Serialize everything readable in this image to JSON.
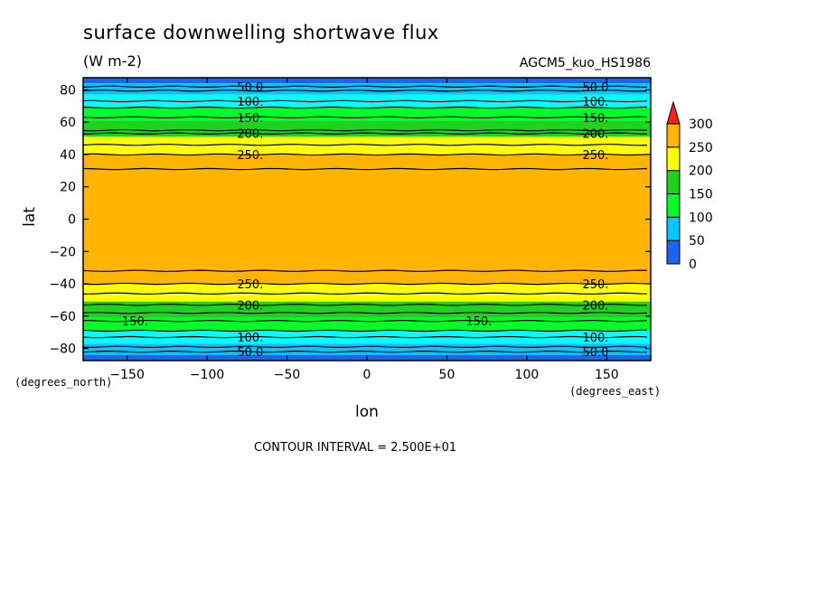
{
  "header": {
    "title": "surface downwelling shortwave flux",
    "units": "(W m-2)",
    "source": "AGCM5_kuo_HS1986"
  },
  "footer": {
    "contour_interval": "CONTOUR INTERVAL = 2.500E+01"
  },
  "chart_data": {
    "type": "heatmap",
    "xlabel": "lon",
    "ylabel": "lat",
    "x_unit_label": "(degrees_east)",
    "y_unit_label": "(degrees_north)",
    "xlim": [
      -177.5,
      177.5
    ],
    "ylim": [
      -87.5,
      87.5
    ],
    "x_ticks": [
      -150,
      -100,
      -50,
      0,
      50,
      100,
      150
    ],
    "y_ticks": [
      -80,
      -60,
      -40,
      -20,
      0,
      20,
      40,
      60,
      80
    ],
    "contour_interval": 25,
    "colorbar": {
      "levels": [
        0,
        50,
        100,
        150,
        200,
        250,
        300
      ],
      "colors": [
        "#1e64f0",
        "#00c8ff",
        "#00ff2a",
        "#1ed21e",
        "#ffff00",
        "#ffb400",
        "#ff1e1e"
      ],
      "overflow_color": "#ff1e1e"
    },
    "bands": [
      {
        "lat_min": 84,
        "lat_max": 87.5,
        "color": "#1e64f0"
      },
      {
        "lat_min": 77,
        "lat_max": 84,
        "color": "#00c8ff"
      },
      {
        "lat_min": 69,
        "lat_max": 77,
        "color": "#00ffff"
      },
      {
        "lat_min": 61,
        "lat_max": 69,
        "color": "#00ff2a"
      },
      {
        "lat_min": 51,
        "lat_max": 61,
        "color": "#1ed21e"
      },
      {
        "lat_min": 40,
        "lat_max": 51,
        "color": "#ffff00"
      },
      {
        "lat_min": -40,
        "lat_max": 40,
        "color": "#ffb400"
      },
      {
        "lat_min": -51,
        "lat_max": -40,
        "color": "#ffff00"
      },
      {
        "lat_min": -61,
        "lat_max": -51,
        "color": "#1ed21e"
      },
      {
        "lat_min": -69,
        "lat_max": -61,
        "color": "#00ff2a"
      },
      {
        "lat_min": -77,
        "lat_max": -69,
        "color": "#00ffff"
      },
      {
        "lat_min": -84,
        "lat_max": -77,
        "color": "#00c8ff"
      },
      {
        "lat_min": -87.5,
        "lat_max": -84,
        "color": "#1e64f0"
      }
    ],
    "contours": [
      {
        "value": 50,
        "lat": 82,
        "labels": [
          {
            "text": "50.0",
            "lon": -73
          },
          {
            "text": "50.0",
            "lon": 143
          }
        ]
      },
      {
        "value": 75,
        "lat": 79.5,
        "labels": []
      },
      {
        "value": 100,
        "lat": 73,
        "labels": [
          {
            "text": "100.",
            "lon": -73
          },
          {
            "text": "100.",
            "lon": 143
          }
        ]
      },
      {
        "value": 125,
        "lat": 69,
        "labels": []
      },
      {
        "value": 150,
        "lat": 63,
        "labels": [
          {
            "text": "150.",
            "lon": -73
          },
          {
            "text": "150.",
            "lon": 143
          }
        ]
      },
      {
        "value": 175,
        "lat": 55,
        "labels": []
      },
      {
        "value": 200,
        "lat": 53,
        "labels": [
          {
            "text": "200.",
            "lon": -73
          },
          {
            "text": "200.",
            "lon": 143
          }
        ]
      },
      {
        "value": 225,
        "lat": 46,
        "labels": []
      },
      {
        "value": 250,
        "lat": 40,
        "labels": [
          {
            "text": "250.",
            "lon": -73
          },
          {
            "text": "250.",
            "lon": 143
          }
        ]
      },
      {
        "value": 275,
        "lat": 31,
        "labels": []
      },
      {
        "value": 275,
        "lat": -32,
        "labels": []
      },
      {
        "value": 250,
        "lat": -40,
        "labels": [
          {
            "text": "250.",
            "lon": -73
          },
          {
            "text": "250.",
            "lon": 143
          }
        ]
      },
      {
        "value": 225,
        "lat": -46,
        "labels": []
      },
      {
        "value": 200,
        "lat": -53,
        "labels": [
          {
            "text": "200.",
            "lon": -73
          },
          {
            "text": "200.",
            "lon": 143
          }
        ]
      },
      {
        "value": 175,
        "lat": -58,
        "labels": []
      },
      {
        "value": 150,
        "lat": -63,
        "labels": [
          {
            "text": "150.",
            "lon": -145
          },
          {
            "text": "150.",
            "lon": 70
          }
        ]
      },
      {
        "value": 125,
        "lat": -69,
        "labels": []
      },
      {
        "value": 100,
        "lat": -73,
        "labels": [
          {
            "text": "100.",
            "lon": -73
          },
          {
            "text": "100.",
            "lon": 143
          }
        ]
      },
      {
        "value": 75,
        "lat": -79,
        "labels": []
      },
      {
        "value": 50,
        "lat": -82,
        "labels": [
          {
            "text": "50.0",
            "lon": -73
          },
          {
            "text": "50.0",
            "lon": 143
          }
        ]
      }
    ]
  }
}
